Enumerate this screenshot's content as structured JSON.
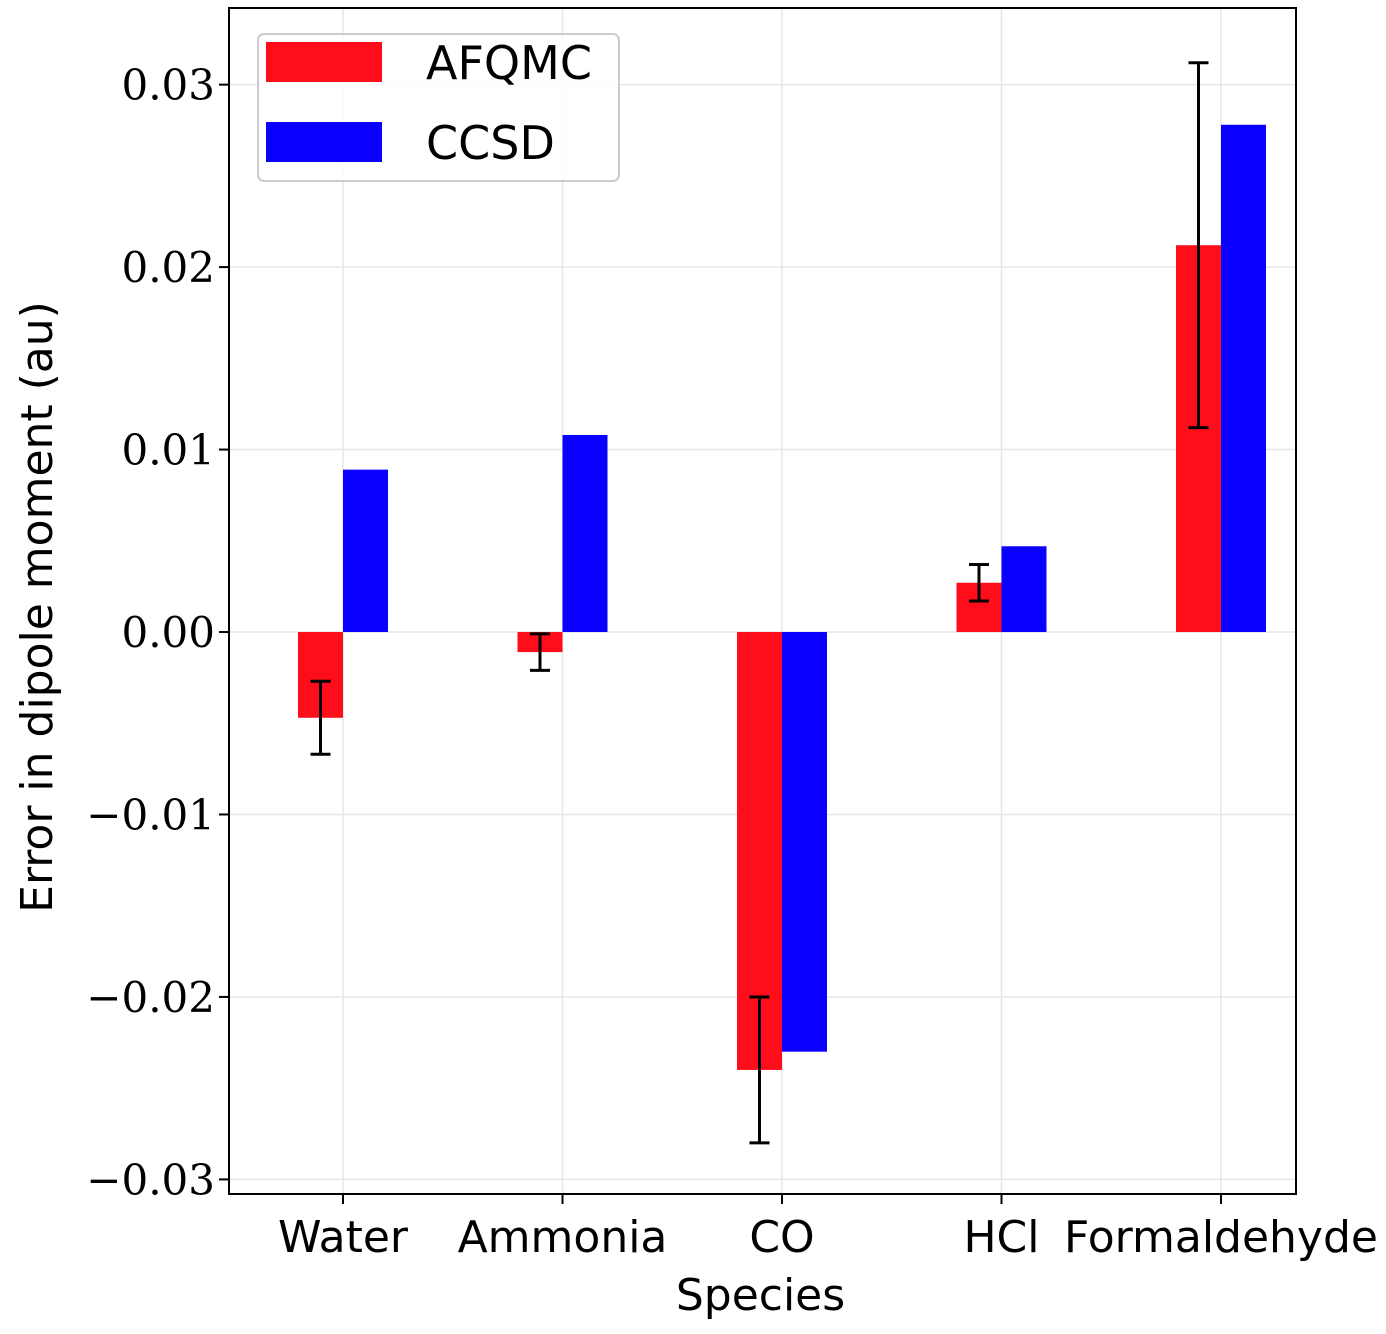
{
  "chart_data": {
    "type": "bar",
    "title": "",
    "xlabel": "Species",
    "ylabel": "Error in dipole moment (au)",
    "categories": [
      "Water",
      "Ammonia",
      "CO",
      "HCl",
      "Formaldehyde"
    ],
    "series": [
      {
        "name": "AFQMC",
        "color": "#ff0d1a",
        "values": [
          -0.0047,
          -0.0011,
          -0.024,
          0.0027,
          0.0212
        ],
        "errors": [
          0.002,
          0.001,
          0.004,
          0.001,
          0.01
        ]
      },
      {
        "name": "CCSD",
        "color": "#0a00ff",
        "values": [
          0.0089,
          0.0108,
          -0.023,
          0.0047,
          0.0278
        ]
      }
    ],
    "ylim": [
      -0.0308,
      0.0342
    ],
    "yticks": [
      -0.03,
      -0.02,
      -0.01,
      0.0,
      0.01,
      0.02,
      0.03
    ],
    "ytick_labels": [
      "−0.03",
      "−0.02",
      "−0.01",
      "0.00",
      "0.01",
      "0.02",
      "0.03"
    ],
    "grid": true,
    "legend_position": "top-left"
  }
}
